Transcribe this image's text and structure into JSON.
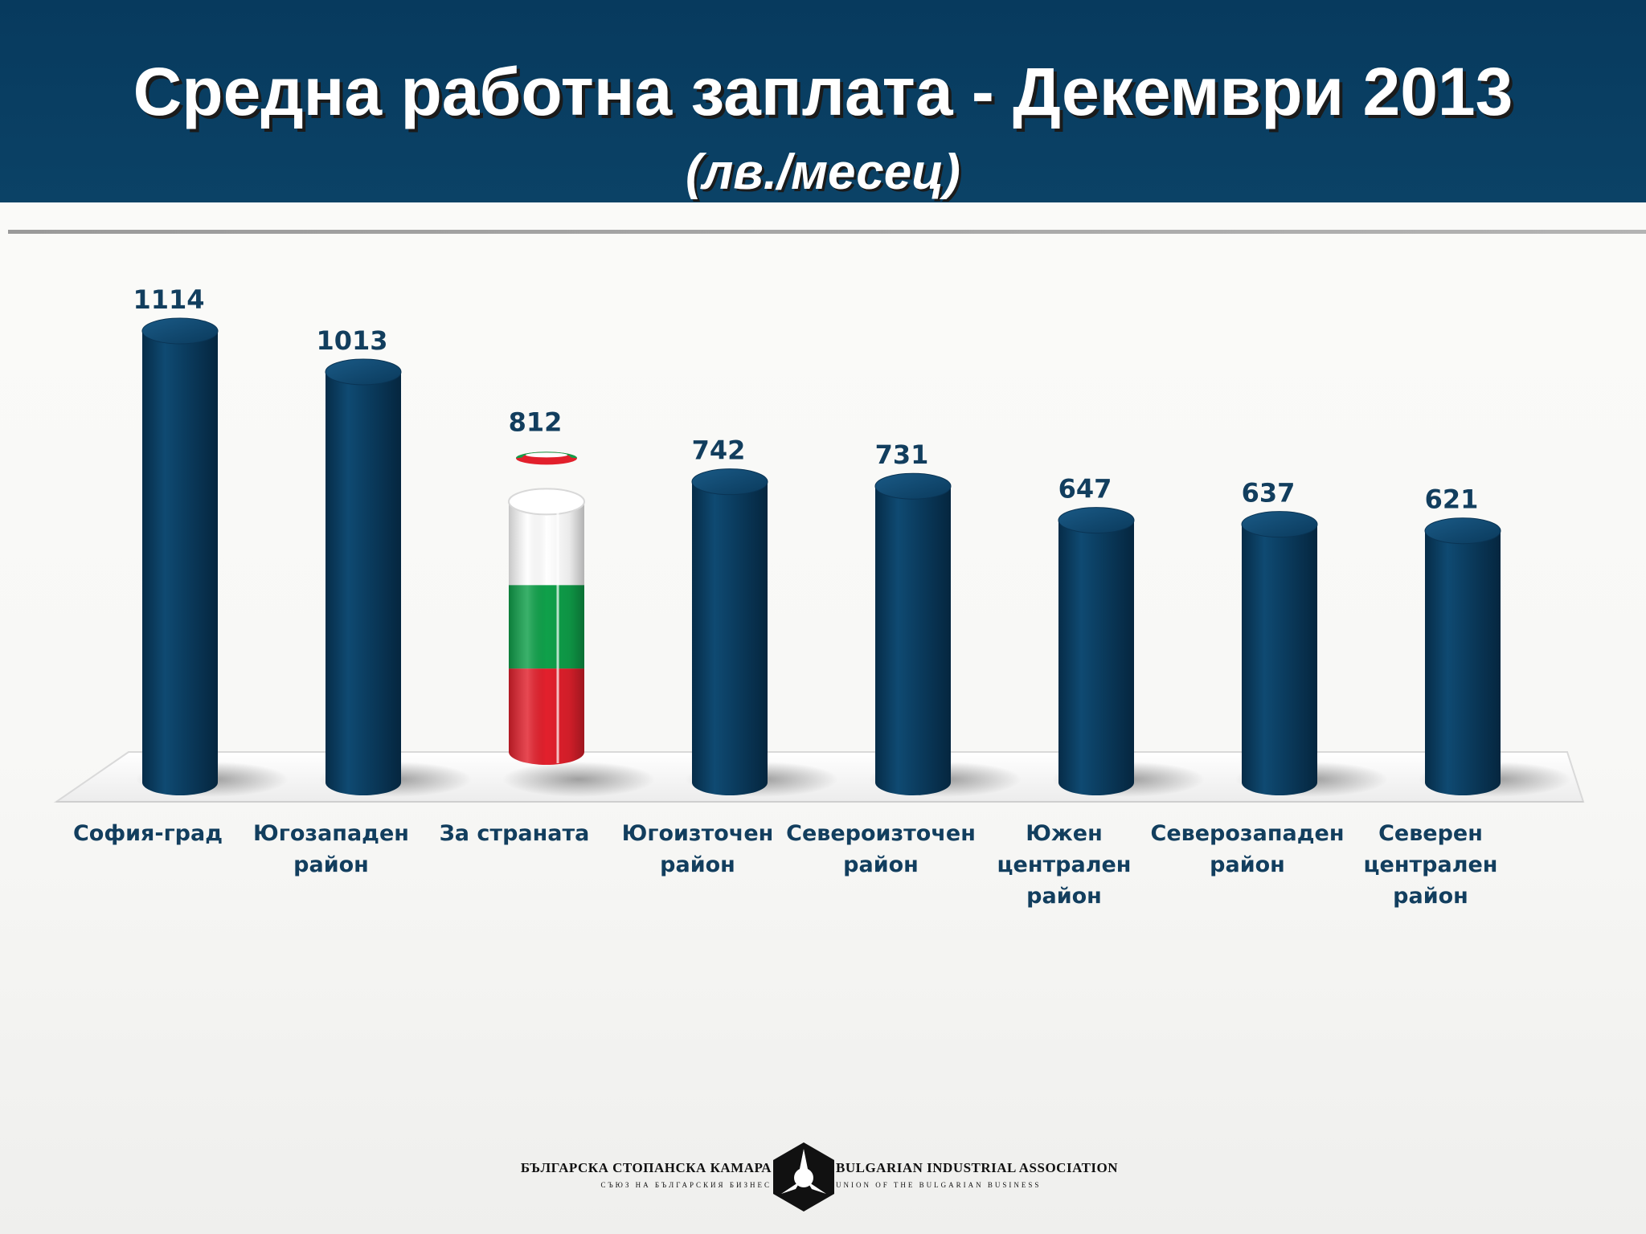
{
  "header": {
    "title": "Средна работна заплата - Декември 2013",
    "subtitle": "(лв./месец)"
  },
  "chart_data": {
    "type": "bar",
    "title": "Средна работна заплата - Декември 2013",
    "ylabel": "",
    "xlabel": "",
    "grid": false,
    "legend": "none",
    "ylim": [
      0,
      1200
    ],
    "categories": [
      [
        "София-град"
      ],
      [
        "Югозападен",
        "район"
      ],
      [
        "За страната"
      ],
      [
        "Югоизточен",
        "район"
      ],
      [
        "Североизточен",
        "район"
      ],
      [
        "Южен",
        "централен",
        "район"
      ],
      [
        "Северозападен",
        "район"
      ],
      [
        "Северен",
        "централен",
        "район"
      ]
    ],
    "values": [
      1114,
      1013,
      812,
      742,
      731,
      647,
      637,
      621
    ],
    "data_labels": [
      "1114",
      "1013",
      "812",
      "742",
      "731",
      "647",
      "637",
      "621"
    ],
    "highlight_index": 2,
    "colors": {
      "bar": "#0b3d60",
      "label": "#123e5e",
      "flag_white": "#ffffff",
      "flag_green": "#0fa04a",
      "flag_red": "#e2202c"
    }
  },
  "logo": {
    "left_main": "БЪЛГАРСКА СТОПАНСКА КАМАРА",
    "left_sub": "СЪЮЗ НА БЪЛГАРСКИЯ БИЗНЕС",
    "right_main": "BULGARIAN INDUSTRIAL ASSOCIATION",
    "right_sub": "UNION OF THE BULGARIAN BUSINESS"
  }
}
